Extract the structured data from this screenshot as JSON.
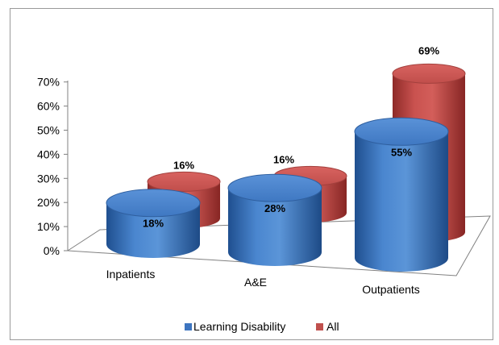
{
  "chart_data": {
    "type": "bar",
    "style": "3d-cylinder",
    "categories": [
      "Inpatients",
      "A&E",
      "Outpatients"
    ],
    "series": [
      {
        "name": "Learning Disability",
        "values": [
          18,
          28,
          55
        ],
        "labels": [
          "18%",
          "28%",
          "55%"
        ],
        "color": "#3d75c0"
      },
      {
        "name": "All",
        "values": [
          16,
          16,
          69
        ],
        "labels": [
          "16%",
          "16%",
          "69%"
        ],
        "color": "#c0504d"
      }
    ],
    "ylim": [
      0,
      70
    ],
    "y_ticks": [
      "0%",
      "10%",
      "20%",
      "30%",
      "40%",
      "50%",
      "60%",
      "70%"
    ],
    "grid": false,
    "legend_position": "bottom",
    "title": "",
    "xlabel": "",
    "ylabel": ""
  }
}
